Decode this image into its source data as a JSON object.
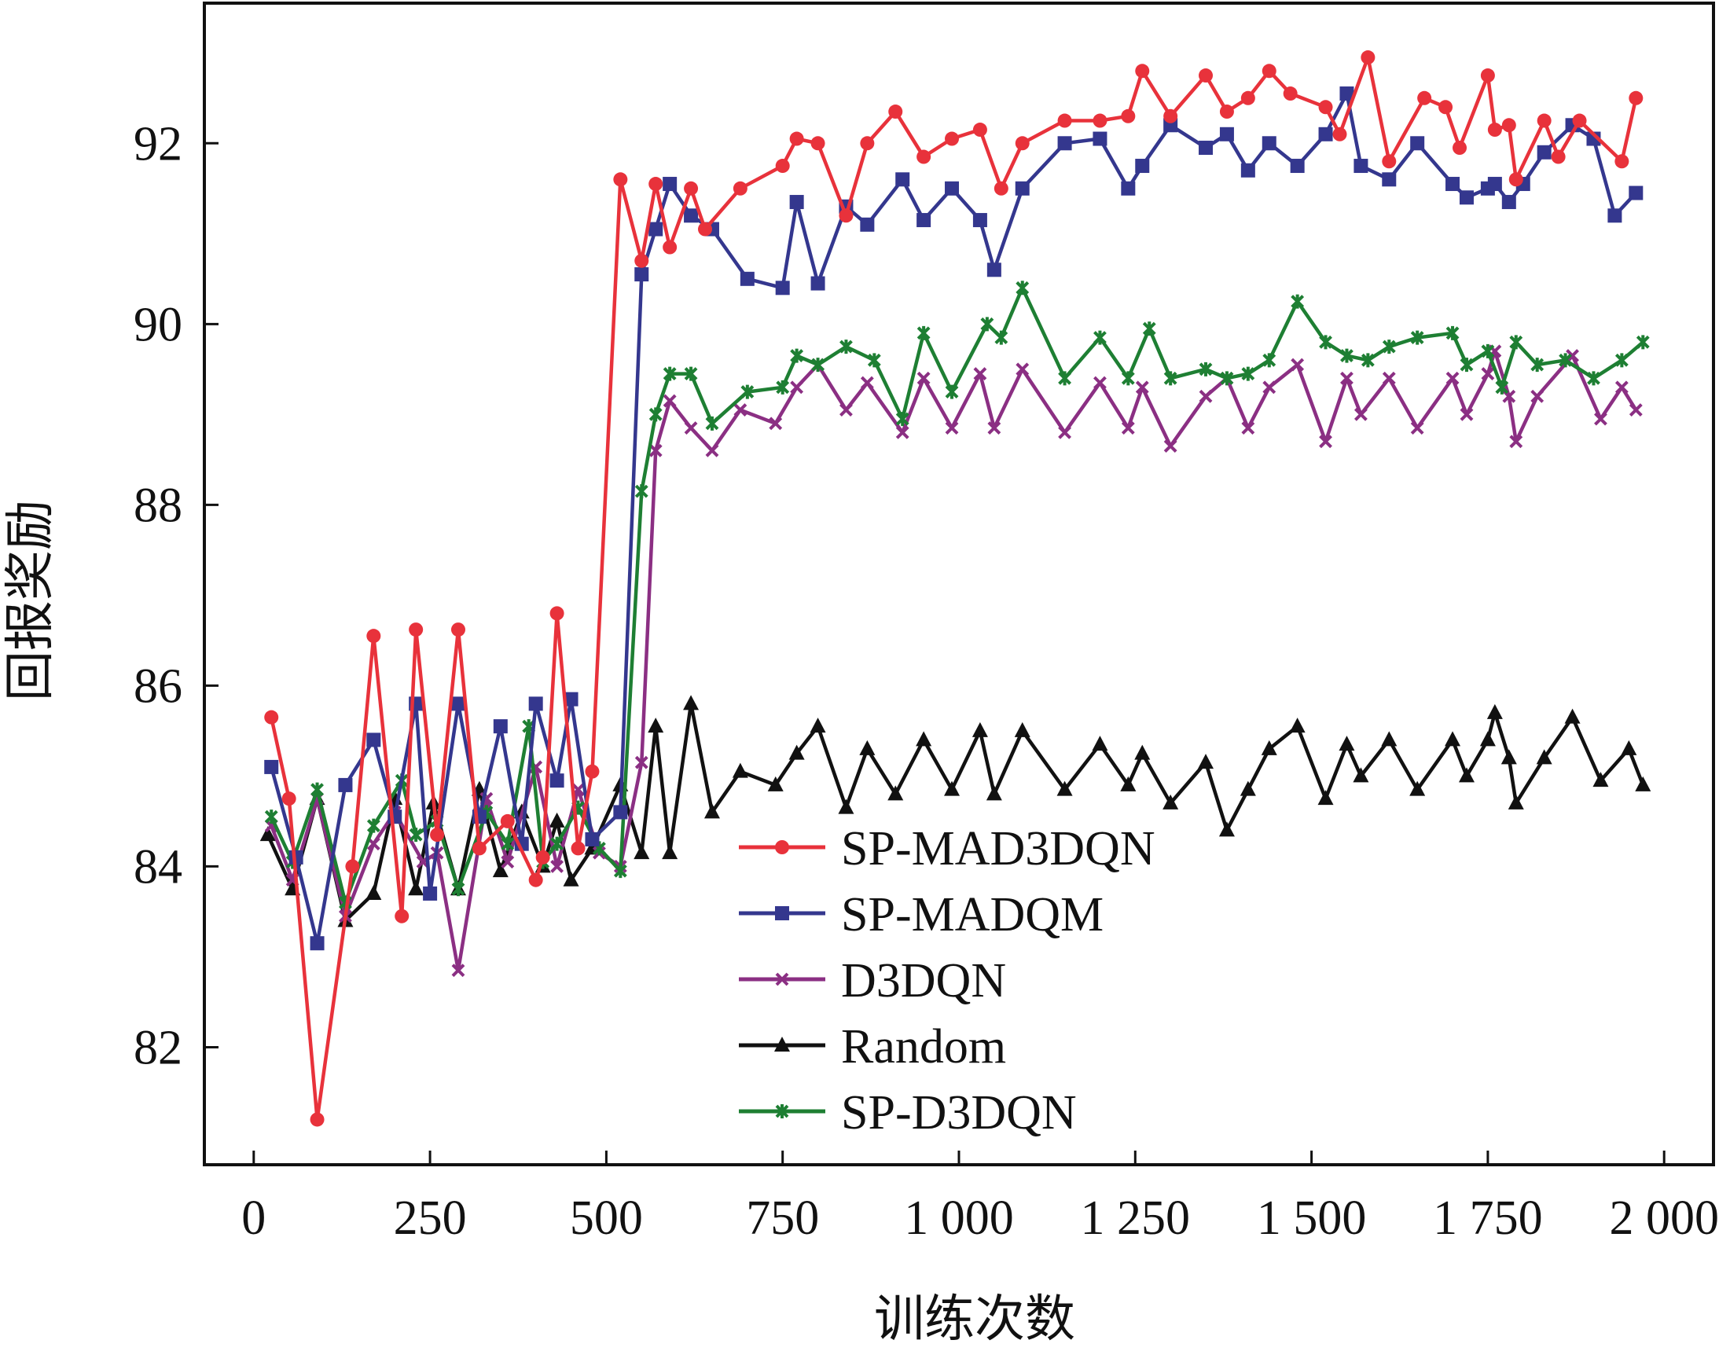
{
  "chart_data": {
    "type": "line",
    "title": "",
    "xlabel": "训练次数",
    "ylabel": "回报奖励",
    "xlim": [
      -70,
      2070
    ],
    "ylim": [
      80.7,
      93.55
    ],
    "xticks": [
      0,
      250,
      500,
      750,
      1000,
      1250,
      1500,
      1750,
      2000
    ],
    "xtick_labels": [
      "0",
      "250",
      "500",
      "750",
      "1 000",
      "1 250",
      "1 500",
      "1 750",
      "2 000"
    ],
    "yticks": [
      82,
      84,
      86,
      88,
      90,
      92
    ],
    "ytick_labels": [
      "82",
      "84",
      "86",
      "88",
      "90",
      "92"
    ],
    "grid": false,
    "legend_position": "bottom-center",
    "series": [
      {
        "name": "SP-MAD3DQN",
        "color": "#e8323b",
        "marker": "circle",
        "x": [
          25,
          50,
          90,
          140,
          170,
          210,
          230,
          260,
          290,
          320,
          360,
          400,
          410,
          430,
          460,
          480,
          520,
          550,
          570,
          590,
          620,
          640,
          690,
          750,
          770,
          800,
          840,
          870,
          910,
          950,
          990,
          1030,
          1060,
          1090,
          1150,
          1200,
          1240,
          1260,
          1300,
          1350,
          1380,
          1410,
          1440,
          1470,
          1520,
          1540,
          1580,
          1610,
          1660,
          1690,
          1710,
          1750,
          1760,
          1780,
          1790,
          1830,
          1850,
          1880,
          1940,
          1960
        ],
        "y": [
          85.65,
          84.75,
          81.2,
          84.0,
          86.55,
          83.45,
          86.62,
          84.35,
          86.62,
          84.2,
          84.5,
          83.85,
          84.1,
          86.8,
          84.2,
          85.05,
          91.6,
          90.7,
          91.55,
          90.85,
          91.5,
          91.05,
          91.5,
          91.75,
          92.05,
          92.0,
          91.2,
          92.0,
          92.35,
          91.85,
          92.05,
          92.15,
          91.5,
          92.0,
          92.25,
          92.25,
          92.3,
          92.8,
          92.3,
          92.75,
          92.35,
          92.5,
          92.8,
          92.55,
          92.4,
          92.1,
          92.95,
          91.8,
          92.5,
          92.4,
          91.95,
          92.75,
          92.15,
          92.2,
          91.6,
          92.25,
          91.85,
          92.25,
          91.8,
          92.5
        ]
      },
      {
        "name": "SP-MADQM",
        "color": "#34378e",
        "marker": "square",
        "x": [
          25,
          60,
          90,
          130,
          170,
          200,
          230,
          250,
          290,
          320,
          350,
          380,
          400,
          430,
          450,
          480,
          520,
          550,
          570,
          590,
          620,
          650,
          700,
          750,
          770,
          800,
          840,
          870,
          920,
          950,
          990,
          1030,
          1050,
          1090,
          1150,
          1200,
          1240,
          1260,
          1300,
          1350,
          1380,
          1410,
          1440,
          1480,
          1520,
          1550,
          1570,
          1610,
          1650,
          1700,
          1720,
          1750,
          1760,
          1780,
          1800,
          1830,
          1870,
          1900,
          1930,
          1960
        ],
        "y": [
          85.1,
          84.1,
          83.15,
          84.9,
          85.4,
          84.55,
          85.8,
          83.7,
          85.8,
          84.55,
          85.55,
          84.25,
          85.8,
          84.95,
          85.85,
          84.3,
          84.6,
          90.55,
          91.05,
          91.55,
          91.2,
          91.05,
          90.5,
          90.4,
          91.35,
          90.45,
          91.3,
          91.1,
          91.6,
          91.15,
          91.5,
          91.15,
          90.6,
          91.5,
          92.0,
          92.05,
          91.5,
          91.75,
          92.2,
          91.95,
          92.1,
          91.7,
          92.0,
          91.75,
          92.1,
          92.55,
          91.75,
          91.6,
          92.0,
          91.55,
          91.4,
          91.5,
          91.55,
          91.35,
          91.55,
          91.9,
          92.2,
          92.05,
          91.2,
          91.45
        ]
      },
      {
        "name": "D3DQN",
        "color": "#8b2f83",
        "marker": "x",
        "x": [
          25,
          55,
          90,
          130,
          170,
          200,
          240,
          260,
          290,
          330,
          360,
          400,
          430,
          460,
          490,
          520,
          550,
          570,
          590,
          620,
          650,
          690,
          740,
          770,
          800,
          840,
          870,
          920,
          950,
          990,
          1030,
          1050,
          1090,
          1150,
          1200,
          1240,
          1260,
          1300,
          1350,
          1380,
          1410,
          1440,
          1480,
          1520,
          1550,
          1570,
          1610,
          1650,
          1700,
          1720,
          1750,
          1760,
          1780,
          1790,
          1820,
          1870,
          1910,
          1940,
          1960
        ],
        "y": [
          84.45,
          83.85,
          84.75,
          83.45,
          84.25,
          84.6,
          84.05,
          84.15,
          82.85,
          84.75,
          84.05,
          85.1,
          84.0,
          84.85,
          84.15,
          84.0,
          85.15,
          88.6,
          89.15,
          88.85,
          88.6,
          89.05,
          88.9,
          89.3,
          89.55,
          89.05,
          89.35,
          88.8,
          89.4,
          88.85,
          89.45,
          88.85,
          89.5,
          88.8,
          89.35,
          88.85,
          89.3,
          88.65,
          89.2,
          89.4,
          88.85,
          89.3,
          89.55,
          88.7,
          89.4,
          89.0,
          89.4,
          88.85,
          89.4,
          89.0,
          89.45,
          89.7,
          89.2,
          88.7,
          89.2,
          89.65,
          88.95,
          89.3,
          89.05
        ]
      },
      {
        "name": "Random",
        "color": "#111111",
        "marker": "triangle",
        "x": [
          20,
          55,
          90,
          130,
          170,
          200,
          230,
          255,
          290,
          320,
          350,
          380,
          410,
          430,
          450,
          480,
          520,
          550,
          570,
          590,
          620,
          650,
          690,
          740,
          770,
          800,
          840,
          870,
          910,
          950,
          990,
          1030,
          1050,
          1090,
          1150,
          1200,
          1240,
          1260,
          1300,
          1350,
          1380,
          1410,
          1440,
          1480,
          1520,
          1550,
          1570,
          1610,
          1650,
          1700,
          1720,
          1750,
          1760,
          1780,
          1790,
          1830,
          1870,
          1910,
          1950,
          1970
        ],
        "y": [
          84.35,
          83.75,
          84.75,
          83.4,
          83.7,
          84.75,
          83.75,
          84.7,
          83.75,
          84.85,
          83.95,
          84.6,
          84.0,
          84.5,
          83.85,
          84.2,
          84.9,
          84.15,
          85.55,
          84.15,
          85.8,
          84.6,
          85.05,
          84.9,
          85.25,
          85.55,
          84.65,
          85.3,
          84.8,
          85.4,
          84.85,
          85.5,
          84.8,
          85.5,
          84.85,
          85.35,
          84.9,
          85.25,
          84.7,
          85.15,
          84.4,
          84.85,
          85.3,
          85.55,
          84.75,
          85.35,
          85.0,
          85.4,
          84.85,
          85.4,
          85.0,
          85.4,
          85.7,
          85.2,
          84.7,
          85.2,
          85.65,
          84.95,
          85.3,
          84.9
        ]
      },
      {
        "name": "SP-D3DQN",
        "color": "#1e7f33",
        "marker": "star",
        "x": [
          25,
          55,
          90,
          130,
          170,
          210,
          230,
          260,
          290,
          330,
          360,
          390,
          410,
          430,
          460,
          490,
          520,
          550,
          570,
          590,
          620,
          650,
          700,
          750,
          770,
          800,
          840,
          880,
          920,
          950,
          990,
          1040,
          1060,
          1090,
          1150,
          1200,
          1240,
          1270,
          1300,
          1350,
          1380,
          1410,
          1440,
          1480,
          1520,
          1550,
          1580,
          1610,
          1650,
          1700,
          1720,
          1750,
          1770,
          1790,
          1820,
          1860,
          1900,
          1940,
          1970
        ],
        "y": [
          84.55,
          84.05,
          84.85,
          83.6,
          84.45,
          84.95,
          84.35,
          84.5,
          83.75,
          84.6,
          84.25,
          85.55,
          84.05,
          84.25,
          84.65,
          84.2,
          83.95,
          88.15,
          89.0,
          89.45,
          89.45,
          88.9,
          89.25,
          89.3,
          89.65,
          89.55,
          89.75,
          89.6,
          88.95,
          89.9,
          89.25,
          90.0,
          89.85,
          90.4,
          89.4,
          89.85,
          89.4,
          89.95,
          89.4,
          89.5,
          89.4,
          89.45,
          89.6,
          90.25,
          89.8,
          89.65,
          89.6,
          89.75,
          89.85,
          89.9,
          89.55,
          89.7,
          89.3,
          89.8,
          89.55,
          89.6,
          89.4,
          89.6,
          89.8
        ]
      }
    ]
  }
}
